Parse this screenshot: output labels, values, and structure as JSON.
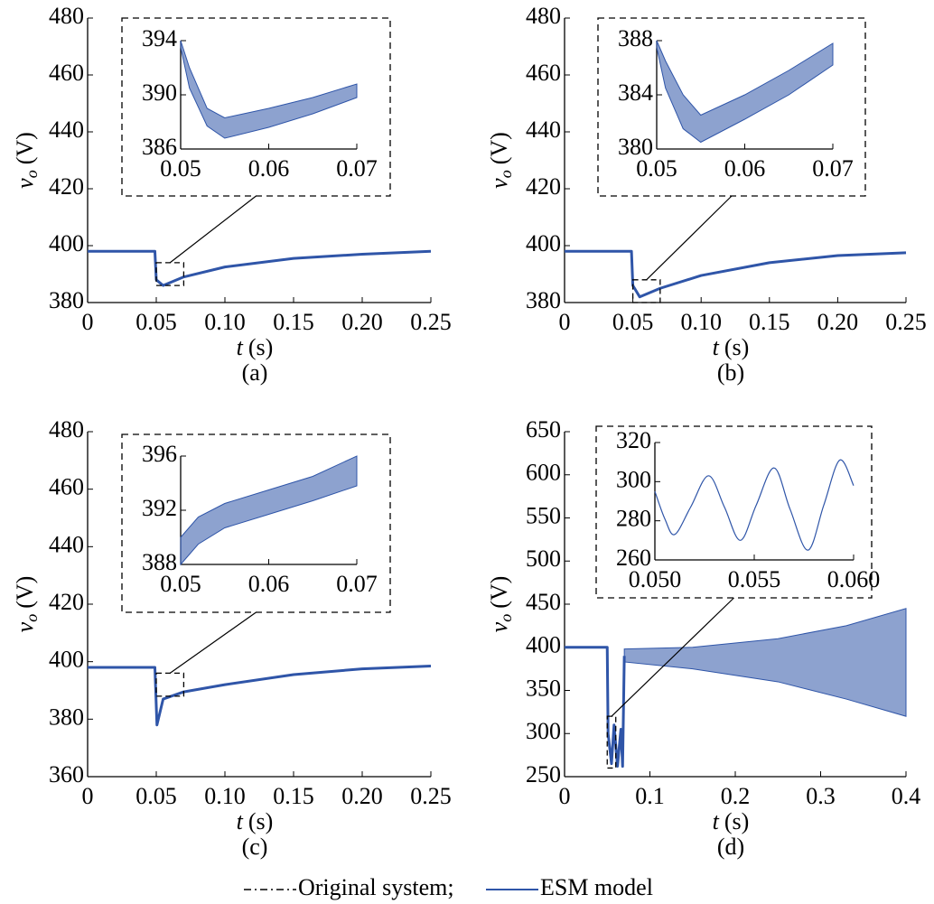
{
  "chart_data": [
    {
      "type": "line",
      "caption": "(a)",
      "xlabel": {
        "symbol": "t",
        "unit": "(s)"
      },
      "ylabel": {
        "symbol": "v",
        "sub": "o",
        "unit": "(V)"
      },
      "xlim": [
        0,
        0.25
      ],
      "xticks": [
        0,
        0.05,
        {
          "value": 0.1,
          "label": "0.10"
        },
        0.15,
        {
          "value": 0.2,
          "label": "0.20"
        },
        0.25
      ],
      "ylim": [
        380,
        480
      ],
      "yticks": [
        380,
        400,
        420,
        440,
        460,
        480
      ],
      "series": [
        {
          "color": "#2f55a8",
          "x": [
            0,
            0.049,
            0.05,
            0.055,
            0.07,
            0.1,
            0.15,
            0.2,
            0.25
          ],
          "values": [
            398,
            398,
            388,
            386,
            389,
            392.5,
            395.5,
            397,
            398
          ]
        }
      ],
      "inset": {
        "xlim": [
          0.05,
          0.07
        ],
        "xticks": [
          0.05,
          0.06,
          0.07
        ],
        "ylim": [
          386,
          394
        ],
        "yticks": [
          386,
          390,
          394
        ],
        "band": {
          "color": "#2f55a8",
          "x": [
            0.05,
            0.051,
            0.053,
            0.055,
            0.06,
            0.065,
            0.07
          ],
          "upper": [
            394,
            392,
            389,
            388.3,
            389,
            389.8,
            390.8
          ],
          "lower": [
            393.5,
            390.5,
            387.7,
            386.8,
            387.6,
            388.6,
            389.8
          ]
        }
      }
    },
    {
      "type": "line",
      "caption": "(b)",
      "xlabel": {
        "symbol": "t",
        "unit": "(s)"
      },
      "ylabel": {
        "symbol": "v",
        "sub": "o",
        "unit": "(V)"
      },
      "xlim": [
        0,
        0.25
      ],
      "xticks": [
        0,
        0.05,
        {
          "value": 0.1,
          "label": "0.10"
        },
        0.15,
        {
          "value": 0.2,
          "label": "0.20"
        },
        0.25
      ],
      "ylim": [
        380,
        480
      ],
      "yticks": [
        380,
        400,
        420,
        440,
        460,
        480
      ],
      "series": [
        {
          "color": "#2f55a8",
          "x": [
            0,
            0.049,
            0.05,
            0.055,
            0.07,
            0.1,
            0.15,
            0.2,
            0.25
          ],
          "values": [
            398,
            398,
            386,
            382,
            385,
            389.5,
            394,
            396.5,
            397.5
          ]
        }
      ],
      "inset": {
        "xlim": [
          0.05,
          0.07
        ],
        "xticks": [
          0.05,
          0.06,
          0.07
        ],
        "ylim": [
          380,
          388
        ],
        "yticks": [
          380,
          384,
          388
        ],
        "band": {
          "color": "#2f55a8",
          "x": [
            0.05,
            0.051,
            0.053,
            0.055,
            0.06,
            0.065,
            0.07
          ],
          "upper": [
            388,
            386.5,
            384,
            382.5,
            384,
            385.8,
            387.8
          ],
          "lower": [
            387.5,
            384.5,
            381.5,
            380.5,
            382.2,
            384,
            386.2
          ]
        }
      }
    },
    {
      "type": "line",
      "caption": "(c)",
      "xlabel": {
        "symbol": "t",
        "unit": "(s)"
      },
      "ylabel": {
        "symbol": "v",
        "sub": "o",
        "unit": "(V)"
      },
      "xlim": [
        0,
        0.25
      ],
      "xticks": [
        0,
        0.05,
        {
          "value": 0.1,
          "label": "0.10"
        },
        0.15,
        {
          "value": 0.2,
          "label": "0.20"
        },
        0.25
      ],
      "ylim": [
        360,
        480
      ],
      "yticks": [
        360,
        380,
        400,
        420,
        440,
        460,
        480
      ],
      "series": [
        {
          "color": "#2f55a8",
          "x": [
            0,
            0.049,
            0.0505,
            0.055,
            0.07,
            0.1,
            0.15,
            0.2,
            0.25
          ],
          "values": [
            398,
            398,
            378,
            387,
            389.5,
            392,
            395.5,
            397.5,
            398.5
          ]
        }
      ],
      "inset": {
        "xlim": [
          0.05,
          0.07
        ],
        "xticks": [
          0.05,
          0.06,
          0.07
        ],
        "ylim": [
          388,
          396
        ],
        "yticks": [
          388,
          392,
          396
        ],
        "band": {
          "color": "#2f55a8",
          "x": [
            0.05,
            0.052,
            0.055,
            0.06,
            0.065,
            0.07
          ],
          "upper": [
            390,
            391.5,
            392.5,
            393.5,
            394.5,
            396
          ],
          "lower": [
            388,
            389.5,
            390.7,
            391.7,
            392.7,
            393.8
          ]
        }
      }
    },
    {
      "type": "line",
      "caption": "(d)",
      "xlabel": {
        "symbol": "t",
        "unit": "(s)"
      },
      "ylabel": {
        "symbol": "v",
        "sub": "o",
        "unit": "(V)"
      },
      "xlim": [
        0,
        0.4
      ],
      "xticks": [
        0,
        0.1,
        0.2,
        0.3,
        0.4
      ],
      "ylim": [
        250,
        650
      ],
      "yticks": [
        250,
        300,
        350,
        400,
        450,
        500,
        550,
        600,
        650
      ],
      "series": [
        {
          "color": "#2f55a8",
          "x": [
            0,
            0.05,
            0.051,
            0.055,
            0.058,
            0.062,
            0.066,
            0.068,
            0.07
          ],
          "values": [
            400,
            400,
            300,
            265,
            310,
            262,
            305,
            262,
            390
          ]
        }
      ],
      "band": {
        "color": "#2f55a8",
        "x": [
          0.07,
          0.15,
          0.25,
          0.33,
          0.4
        ],
        "upper": [
          398,
          400,
          410,
          425,
          445
        ],
        "lower": [
          383,
          375,
          360,
          340,
          320
        ]
      },
      "inset": {
        "xlim": [
          0.05,
          0.06
        ],
        "xticks": [
          {
            "value": 0.05,
            "label": "0.050"
          },
          0.055,
          {
            "value": 0.06,
            "label": "0.060"
          }
        ],
        "ylim": [
          260,
          320
        ],
        "yticks": [
          260,
          280,
          300,
          320
        ],
        "series": [
          {
            "color": "#2f55a8",
            "x": [
              0.05,
              0.0505,
              0.051,
              0.0518,
              0.0527,
              0.0535,
              0.0543,
              0.0551,
              0.056,
              0.0568,
              0.0577,
              0.0585,
              0.0593,
              0.06
            ],
            "values": [
              295,
              281,
              273,
              287,
              303,
              287,
              270,
              288,
              307,
              286,
              265,
              288,
              311,
              298
            ]
          }
        ]
      }
    }
  ],
  "legend": [
    {
      "name": "Original system;",
      "color": "#000000",
      "dash": true
    },
    {
      "name": "ESM model",
      "color": "#2f55a8",
      "dash": false
    }
  ]
}
